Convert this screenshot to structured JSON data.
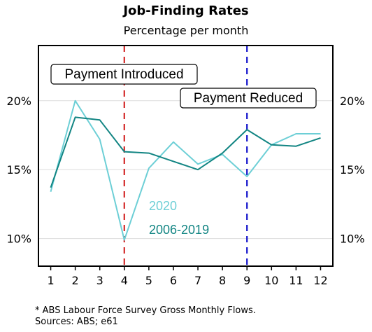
{
  "chart_data": {
    "type": "line",
    "title": "Job-Finding Rates",
    "subtitle": "Percentage per month",
    "x": [
      1,
      2,
      3,
      4,
      5,
      6,
      7,
      8,
      9,
      10,
      11,
      12
    ],
    "xlim": [
      0.5,
      12.5
    ],
    "ylim": [
      8.0,
      24.0
    ],
    "y_ticks": [
      10,
      15,
      20
    ],
    "y_tick_labels": [
      "10%",
      "15%",
      "20%"
    ],
    "x_tick_labels": [
      "1",
      "2",
      "3",
      "4",
      "5",
      "6",
      "7",
      "8",
      "9",
      "10",
      "11",
      "12"
    ],
    "grid": true,
    "series": [
      {
        "name": "2020",
        "color": "#6dcfd6",
        "values": [
          13.4,
          20.0,
          17.2,
          9.9,
          15.1,
          17.0,
          15.4,
          16.1,
          14.5,
          16.8,
          17.6,
          17.6
        ]
      },
      {
        "name": "2006-2019",
        "color": "#128583",
        "values": [
          13.7,
          18.8,
          18.6,
          16.3,
          16.2,
          15.6,
          15.0,
          16.2,
          17.9,
          16.8,
          16.7,
          17.3
        ]
      }
    ],
    "vlines": [
      {
        "x": 4,
        "label": "Payment Introduced",
        "color": "#d42a2a"
      },
      {
        "x": 9,
        "label": "Payment Reduced",
        "color": "#1515cc"
      }
    ]
  },
  "notes": {
    "line1": "* ABS Labour Force Survey Gross Monthly Flows.",
    "line2": "Sources: ABS; e61"
  }
}
